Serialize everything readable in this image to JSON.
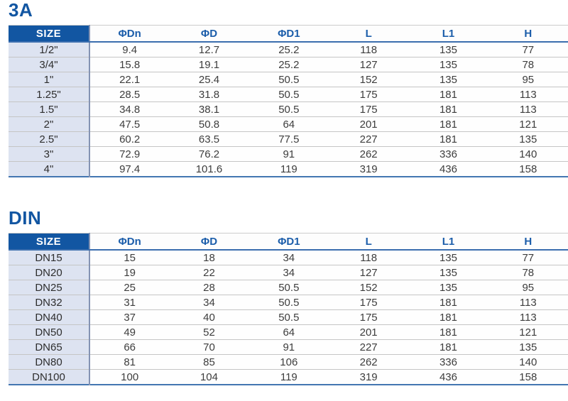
{
  "colors": {
    "title_blue": "#1256a2",
    "header_bg_blue": "#1256a2",
    "header_text_blue": "#1b5daa",
    "size_column_bg": "#dde3f1",
    "accent_line_blue": "#3b6eae",
    "row_separator_gray": "#c5c5c5",
    "body_text": "#3d3d3d"
  },
  "tables": [
    {
      "title": "3A",
      "columns": [
        "SIZE",
        "ΦDn",
        "ΦD",
        "ΦD1",
        "L",
        "L1",
        "H"
      ],
      "rows": [
        [
          "1/2\"",
          "9.4",
          "12.7",
          "25.2",
          "118",
          "135",
          "77"
        ],
        [
          "3/4\"",
          "15.8",
          "19.1",
          "25.2",
          "127",
          "135",
          "78"
        ],
        [
          "1\"",
          "22.1",
          "25.4",
          "50.5",
          "152",
          "135",
          "95"
        ],
        [
          "1.25\"",
          "28.5",
          "31.8",
          "50.5",
          "175",
          "181",
          "113"
        ],
        [
          "1.5\"",
          "34.8",
          "38.1",
          "50.5",
          "175",
          "181",
          "113"
        ],
        [
          "2\"",
          "47.5",
          "50.8",
          "64",
          "201",
          "181",
          "121"
        ],
        [
          "2.5\"",
          "60.2",
          "63.5",
          "77.5",
          "227",
          "181",
          "135"
        ],
        [
          "3\"",
          "72.9",
          "76.2",
          "91",
          "262",
          "336",
          "140"
        ],
        [
          "4\"",
          "97.4",
          "101.6",
          "119",
          "319",
          "436",
          "158"
        ]
      ]
    },
    {
      "title": "DIN",
      "columns": [
        "SIZE",
        "ΦDn",
        "ΦD",
        "ΦD1",
        "L",
        "L1",
        "H"
      ],
      "rows": [
        [
          "DN15",
          "15",
          "18",
          "34",
          "118",
          "135",
          "77"
        ],
        [
          "DN20",
          "19",
          "22",
          "34",
          "127",
          "135",
          "78"
        ],
        [
          "DN25",
          "25",
          "28",
          "50.5",
          "152",
          "135",
          "95"
        ],
        [
          "DN32",
          "31",
          "34",
          "50.5",
          "175",
          "181",
          "113"
        ],
        [
          "DN40",
          "37",
          "40",
          "50.5",
          "175",
          "181",
          "113"
        ],
        [
          "DN50",
          "49",
          "52",
          "64",
          "201",
          "181",
          "121"
        ],
        [
          "DN65",
          "66",
          "70",
          "91",
          "227",
          "181",
          "135"
        ],
        [
          "DN80",
          "81",
          "85",
          "106",
          "262",
          "336",
          "140"
        ],
        [
          "DN100",
          "100",
          "104",
          "119",
          "319",
          "436",
          "158"
        ]
      ]
    }
  ]
}
